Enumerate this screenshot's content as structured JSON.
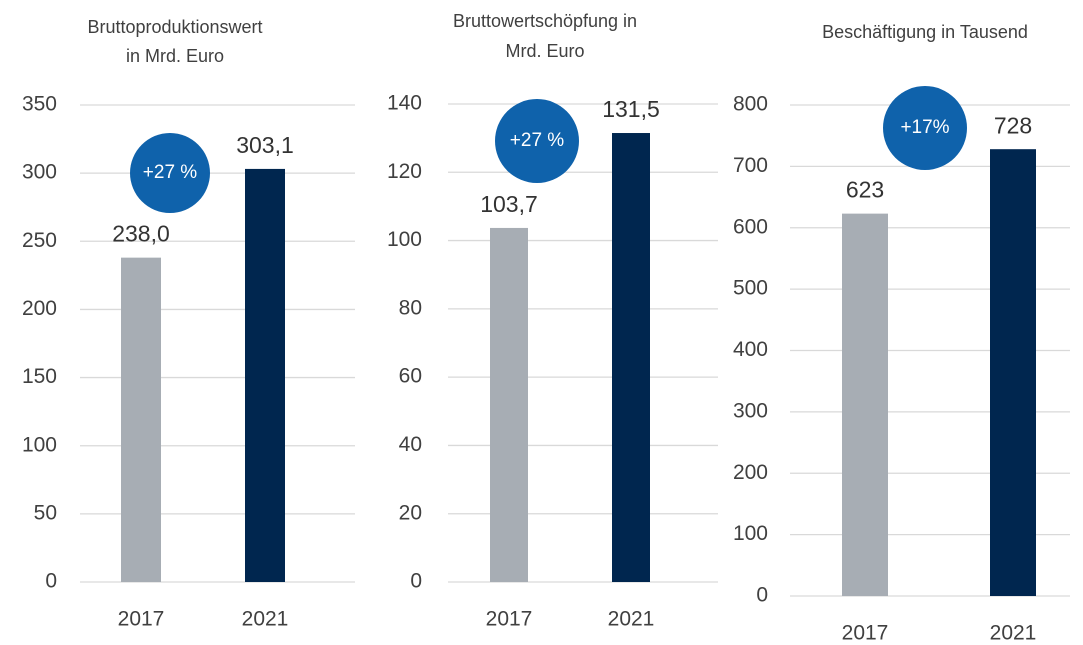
{
  "chart_data": [
    {
      "type": "bar",
      "title": [
        "Bruttoproduktionswert",
        "in Mrd. Euro"
      ],
      "categories": [
        "2017",
        "2021"
      ],
      "series": [
        {
          "colors": [
            "#a7adb4",
            "#00264f"
          ],
          "values": [
            238.0,
            303.1
          ],
          "value_labels": [
            "238,0",
            "303,1"
          ]
        }
      ],
      "ylim": [
        0,
        350
      ],
      "yticks": [
        0,
        50,
        100,
        150,
        200,
        250,
        300,
        350
      ],
      "grid": true,
      "annotation": "+27 %",
      "annotation_color": "#0f62ab"
    },
    {
      "type": "bar",
      "title": [
        "Bruttowertschöpfung in",
        "Mrd. Euro"
      ],
      "categories": [
        "2017",
        "2021"
      ],
      "series": [
        {
          "colors": [
            "#a7adb4",
            "#00264f"
          ],
          "values": [
            103.7,
            131.5
          ],
          "value_labels": [
            "103,7",
            "131,5"
          ]
        }
      ],
      "ylim": [
        0,
        140
      ],
      "yticks": [
        0,
        20,
        40,
        60,
        80,
        100,
        120,
        140
      ],
      "grid": true,
      "annotation": "+27 %",
      "annotation_color": "#0f62ab"
    },
    {
      "type": "bar",
      "title": [
        "Beschäftigung in Tausend"
      ],
      "categories": [
        "2017",
        "2021"
      ],
      "series": [
        {
          "colors": [
            "#a7adb4",
            "#00264f"
          ],
          "values": [
            623,
            728
          ]
        }
      ],
      "ylim": [
        0,
        800
      ],
      "yticks": [
        0,
        100,
        200,
        300,
        400,
        500,
        600,
        700,
        800
      ],
      "grid": true,
      "annotation": "+17%",
      "annotation_color": "#0f62ab"
    }
  ]
}
